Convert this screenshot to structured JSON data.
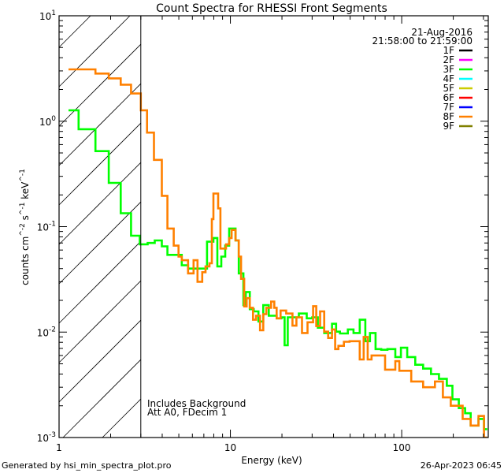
{
  "chart_data": {
    "type": "line",
    "title": "Count Spectra for RHESSI Front Segments",
    "xlabel": "Energy (keV)",
    "ylabel": "counts cm^-2 s^-1 keV^-1",
    "ylabel_parts": {
      "base": "counts cm",
      "e1": "-2",
      "mid": " s",
      "e2": "-1",
      "tail": " keV",
      "e3": "-1"
    },
    "xscale": "log",
    "yscale": "log",
    "xlim": [
      1,
      320
    ],
    "ylim": [
      0.001,
      10
    ],
    "x_ticks": [
      {
        "value": 1,
        "label": "1"
      },
      {
        "value": 10,
        "label": "10"
      },
      {
        "value": 100,
        "label": "100"
      }
    ],
    "y_ticks": [
      {
        "value": 10,
        "base": "10",
        "exp": "1"
      },
      {
        "value": 1,
        "base": "10",
        "exp": "0"
      },
      {
        "value": 0.1,
        "base": "10",
        "exp": "-1"
      },
      {
        "value": 0.01,
        "base": "10",
        "exp": "-2"
      },
      {
        "value": 0.001,
        "base": "10",
        "exp": "-3"
      }
    ],
    "excluded_region": {
      "from": 1,
      "to": 3,
      "style": "hatched"
    },
    "legend": {
      "placement": "top-right",
      "date": "21-Aug-2016",
      "time_range": "21:58:00 to 21:59:00",
      "items": [
        {
          "label": "1F",
          "color": "#000000"
        },
        {
          "label": "2F",
          "color": "#ff00ff"
        },
        {
          "label": "3F",
          "color": "#00ff00"
        },
        {
          "label": "4F",
          "color": "#00ffff"
        },
        {
          "label": "5F",
          "color": "#cccc00"
        },
        {
          "label": "6F",
          "color": "#ff0000"
        },
        {
          "label": "7F",
          "color": "#0000ff"
        },
        {
          "label": "8F",
          "color": "#ff8000"
        },
        {
          "label": "9F",
          "color": "#808000"
        }
      ]
    },
    "annotations": [
      "Includes Background",
      "Att A0, FDecim 1"
    ],
    "series": [
      {
        "name": "3F",
        "color": "#00ff00",
        "drawstyle": "steps",
        "edges": [
          1.136,
          1.3,
          1.63,
          1.95,
          2.29,
          2.63,
          2.96,
          3.29,
          3.62,
          3.98,
          4.29,
          5.2,
          5.66,
          7.31,
          7.96,
          8.39,
          8.85,
          9.33,
          9.84,
          10.72,
          11.19,
          11.91,
          12.3,
          12.98,
          13.68,
          14.58,
          15.55,
          16.75,
          18.63,
          19.86,
          20.72,
          21.62,
          25.1,
          27.9,
          30.05,
          32.4,
          35.3,
          39.2,
          41.4,
          43.6,
          48.5,
          52.3,
          56.9,
          61.3,
          65.3,
          70.4,
          75.9,
          82.6,
          91.8,
          98.9,
          107.7,
          119.9,
          133.3,
          148.3,
          164.9,
          183.4,
          197.6,
          215.3,
          234.4,
          252.6,
          280.7,
          302.3,
          315.6
        ],
        "values": [
          1.27,
          0.84,
          0.52,
          0.26,
          0.134,
          0.082,
          0.068,
          0.07,
          0.074,
          0.065,
          0.054,
          0.043,
          0.04,
          0.072,
          0.078,
          0.042,
          0.052,
          0.066,
          0.096,
          0.074,
          0.036,
          0.018,
          0.024,
          0.0165,
          0.0157,
          0.0126,
          0.018,
          0.0143,
          0.0135,
          0.0138,
          0.0075,
          0.0138,
          0.015,
          0.0135,
          0.0138,
          0.011,
          0.0098,
          0.012,
          0.0101,
          0.0097,
          0.0106,
          0.0098,
          0.0131,
          0.0082,
          0.0098,
          0.0069,
          0.0068,
          0.0069,
          0.0058,
          0.0071,
          0.0058,
          0.0049,
          0.0045,
          0.004,
          0.0036,
          0.0031,
          0.0023,
          0.0019,
          0.0017,
          0.0013,
          0.0015,
          0.0012
        ]
      },
      {
        "name": "8F",
        "color": "#ff8000",
        "drawstyle": "steps",
        "edges": [
          1.136,
          1.63,
          1.95,
          2.29,
          2.63,
          3.0,
          3.26,
          3.58,
          3.98,
          4.29,
          4.67,
          4.98,
          5.2,
          5.66,
          6.1,
          6.43,
          6.85,
          7.16,
          7.55,
          7.79,
          7.96,
          8.48,
          8.75,
          9.43,
          9.84,
          10.16,
          10.72,
          11.19,
          11.54,
          12.04,
          12.44,
          12.98,
          13.55,
          14.13,
          14.9,
          15.55,
          16.22,
          17.29,
          18.04,
          18.63,
          19.64,
          21.17,
          23.04,
          24.3,
          26.18,
          28.2,
          30.39,
          31.7,
          33.4,
          35.3,
          37.2,
          39.2,
          40.9,
          42.7,
          46.0,
          49.6,
          56.9,
          60.0,
          63.3,
          66.7,
          80.0,
          91.8,
          96.9,
          113.6,
          133.3,
          156.3,
          173.9,
          193.3,
          226.9,
          252.6,
          280.7,
          302.3,
          315.6
        ],
        "values": [
          3.1,
          2.83,
          2.55,
          2.22,
          1.83,
          1.27,
          0.78,
          0.43,
          0.196,
          0.096,
          0.066,
          0.052,
          0.048,
          0.036,
          0.048,
          0.03,
          0.037,
          0.042,
          0.045,
          0.118,
          0.206,
          0.149,
          0.062,
          0.068,
          0.078,
          0.093,
          0.074,
          0.052,
          0.032,
          0.0175,
          0.021,
          0.017,
          0.0131,
          0.0143,
          0.0104,
          0.0148,
          0.017,
          0.0195,
          0.017,
          0.0135,
          0.016,
          0.015,
          0.0115,
          0.0138,
          0.0098,
          0.0124,
          0.0176,
          0.0114,
          0.0157,
          0.0101,
          0.0088,
          0.0106,
          0.0069,
          0.0074,
          0.0081,
          0.0082,
          0.0055,
          0.009,
          0.0055,
          0.006,
          0.0044,
          0.0053,
          0.0043,
          0.0034,
          0.003,
          0.0034,
          0.0024,
          0.002,
          0.0015,
          0.0013,
          0.0016,
          0.00095
        ]
      }
    ]
  },
  "footer": {
    "generated_by": "Generated by hsi_min_spectra_plot.pro",
    "timestamp": "26-Apr-2023 06:45"
  }
}
